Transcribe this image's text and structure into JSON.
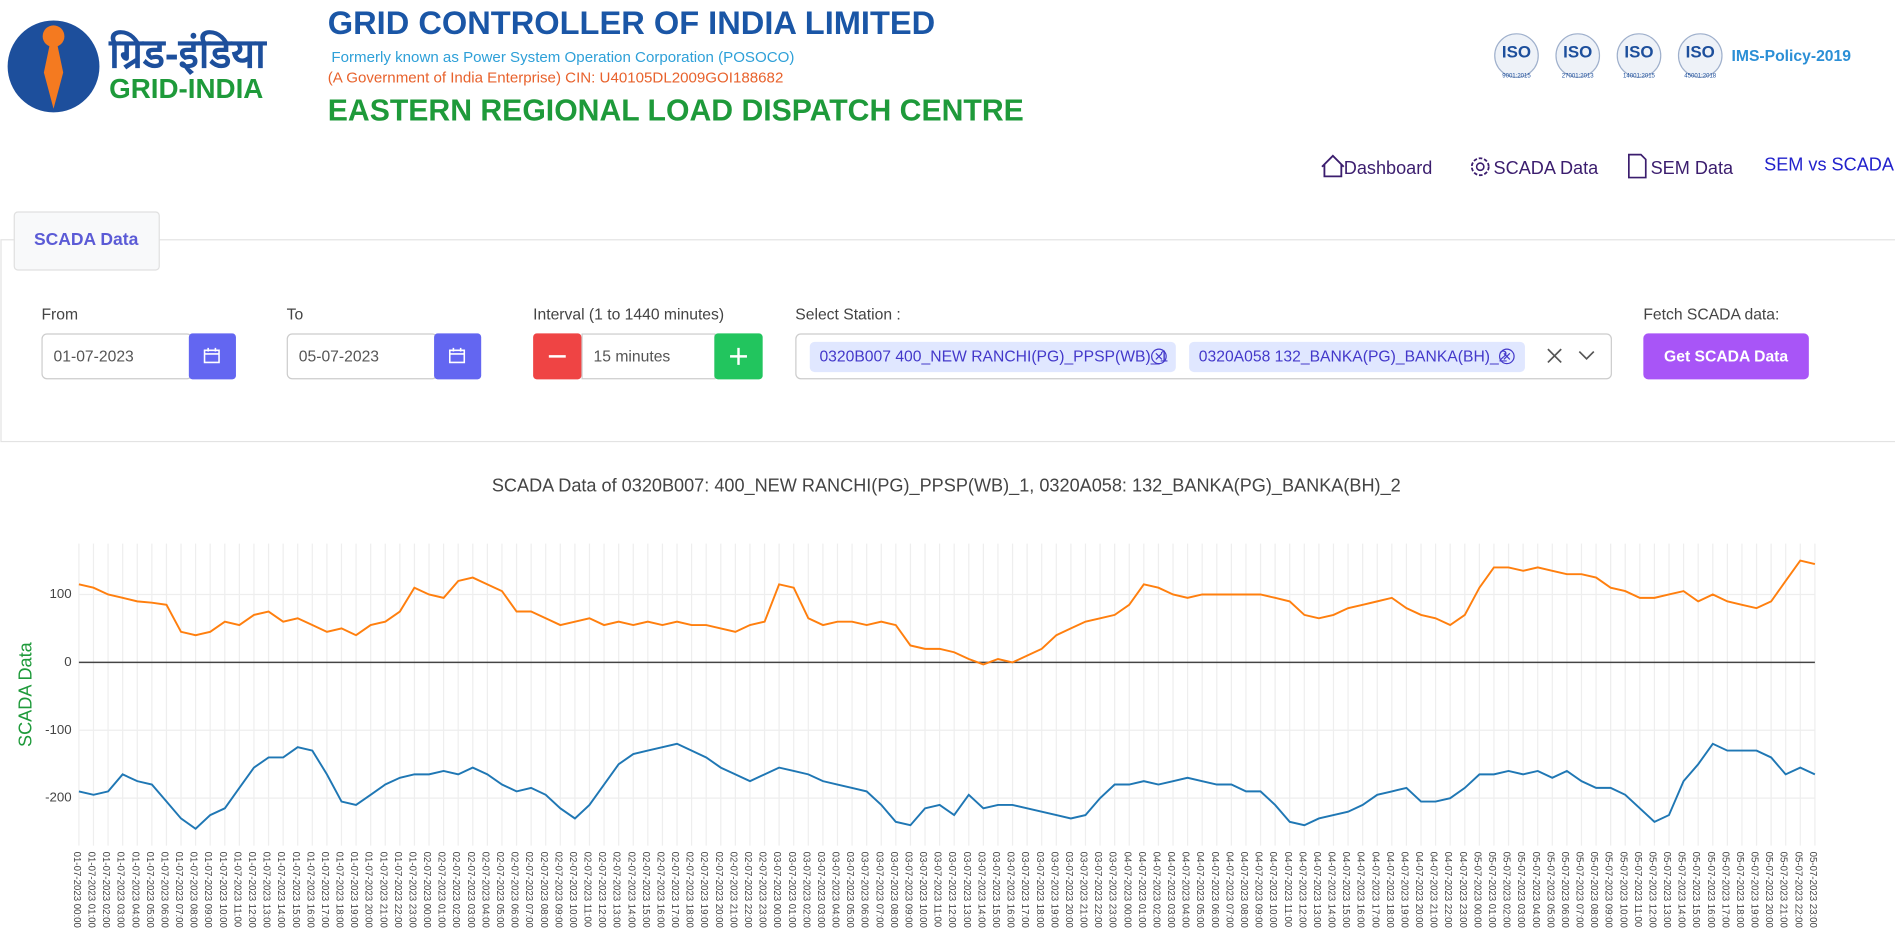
{
  "header": {
    "logo_hindi": "ग्रिड-इंडिया",
    "logo_english": "GRID-INDIA",
    "title": "GRID CONTROLLER OF INDIA LIMITED",
    "subtitle": "Formerly known as Power System Operation Corporation (POSOCO)",
    "cin": "(A Government of India Enterprise) CIN: U40105DL2009GOI188682",
    "centre": "EASTERN REGIONAL LOAD DISPATCH CENTRE",
    "iso": [
      {
        "label": "ISO",
        "std": "9001:2015"
      },
      {
        "label": "ISO",
        "std": "27001:2013"
      },
      {
        "label": "ISO",
        "std": "14001:2015"
      },
      {
        "label": "ISO",
        "std": "45001:2018"
      }
    ],
    "policy": "IMS-Policy-2019"
  },
  "nav": [
    "Dashboard",
    "SCADA Data",
    "SEM Data",
    "SEM vs SCADA"
  ],
  "tab": "SCADA Data",
  "form": {
    "from_label": "From",
    "from_value": "01-07-2023",
    "to_label": "To",
    "to_value": "05-07-2023",
    "interval_label": "Interval (1 to 1440 minutes)",
    "interval_value": "15 minutes",
    "station_label": "Select Station :",
    "stations": [
      "0320B007 400_NEW RANCHI(PG)_PPSP(WB)_1",
      "0320A058 132_BANKA(PG)_BANKA(BH)_2"
    ],
    "fetch_label": "Fetch SCADA data:",
    "fetch_button": "Get SCADA Data"
  },
  "chart_data": {
    "type": "line",
    "title": "SCADA Data of 0320B007: 400_NEW RANCHI(PG)_PPSP(WB)_1, 0320A058: 132_BANKA(PG)_BANKA(BH)_2",
    "y_label": "SCADA Data",
    "categories": [
      "01-07-2023 00:00",
      "01-07-2023 01:00",
      "01-07-2023 02:00",
      "01-07-2023 03:00",
      "01-07-2023 04:00",
      "01-07-2023 05:00",
      "01-07-2023 06:00",
      "01-07-2023 07:00",
      "01-07-2023 08:00",
      "01-07-2023 09:00",
      "01-07-2023 10:00",
      "01-07-2023 11:00",
      "01-07-2023 12:00",
      "01-07-2023 13:00",
      "01-07-2023 14:00",
      "01-07-2023 15:00",
      "01-07-2023 16:00",
      "01-07-2023 17:00",
      "01-07-2023 18:00",
      "01-07-2023 19:00",
      "01-07-2023 20:00",
      "01-07-2023 21:00",
      "01-07-2023 22:00",
      "01-07-2023 23:00",
      "02-07-2023 00:00",
      "02-07-2023 01:00",
      "02-07-2023 02:00",
      "02-07-2023 03:00",
      "02-07-2023 04:00",
      "02-07-2023 05:00",
      "02-07-2023 06:00",
      "02-07-2023 07:00",
      "02-07-2023 08:00",
      "02-07-2023 09:00",
      "02-07-2023 10:00",
      "02-07-2023 11:00",
      "02-07-2023 12:00",
      "02-07-2023 13:00",
      "02-07-2023 14:00",
      "02-07-2023 15:00",
      "02-07-2023 16:00",
      "02-07-2023 17:00",
      "02-07-2023 18:00",
      "02-07-2023 19:00",
      "02-07-2023 20:00",
      "02-07-2023 21:00",
      "02-07-2023 22:00",
      "02-07-2023 23:00",
      "03-07-2023 00:00",
      "03-07-2023 01:00",
      "03-07-2023 02:00",
      "03-07-2023 03:00",
      "03-07-2023 04:00",
      "03-07-2023 05:00",
      "03-07-2023 06:00",
      "03-07-2023 07:00",
      "03-07-2023 08:00",
      "03-07-2023 09:00",
      "03-07-2023 10:00",
      "03-07-2023 11:00",
      "03-07-2023 12:00",
      "03-07-2023 13:00",
      "03-07-2023 14:00",
      "03-07-2023 15:00",
      "03-07-2023 16:00",
      "03-07-2023 17:00",
      "03-07-2023 18:00",
      "03-07-2023 19:00",
      "03-07-2023 20:00",
      "03-07-2023 21:00",
      "03-07-2023 22:00",
      "03-07-2023 23:00",
      "04-07-2023 00:00",
      "04-07-2023 01:00",
      "04-07-2023 02:00",
      "04-07-2023 03:00",
      "04-07-2023 04:00",
      "04-07-2023 05:00",
      "04-07-2023 06:00",
      "04-07-2023 07:00",
      "04-07-2023 08:00",
      "04-07-2023 09:00",
      "04-07-2023 10:00",
      "04-07-2023 11:00",
      "04-07-2023 12:00",
      "04-07-2023 13:00",
      "04-07-2023 14:00",
      "04-07-2023 15:00",
      "04-07-2023 16:00",
      "04-07-2023 17:00",
      "04-07-2023 18:00",
      "04-07-2023 19:00",
      "04-07-2023 20:00",
      "04-07-2023 21:00",
      "04-07-2023 22:00",
      "04-07-2023 23:00",
      "05-07-2023 00:00",
      "05-07-2023 01:00",
      "05-07-2023 02:00",
      "05-07-2023 03:00",
      "05-07-2023 04:00",
      "05-07-2023 05:00",
      "05-07-2023 06:00",
      "05-07-2023 07:00",
      "05-07-2023 08:00",
      "05-07-2023 09:00",
      "05-07-2023 10:00",
      "05-07-2023 11:00",
      "05-07-2023 12:00",
      "05-07-2023 13:00",
      "05-07-2023 14:00",
      "05-07-2023 15:00",
      "05-07-2023 16:00",
      "05-07-2023 17:00",
      "05-07-2023 18:00",
      "05-07-2023 19:00",
      "05-07-2023 20:00",
      "05-07-2023 21:00",
      "05-07-2023 22:00",
      "05-07-2023 23:00"
    ],
    "series": [
      {
        "color": "#ff7f0e",
        "values": [
          115,
          110,
          100,
          95,
          90,
          88,
          85,
          45,
          40,
          45,
          60,
          55,
          70,
          75,
          60,
          65,
          55,
          45,
          50,
          40,
          55,
          60,
          75,
          110,
          100,
          95,
          120,
          125,
          115,
          105,
          75,
          75,
          65,
          55,
          60,
          65,
          55,
          60,
          55,
          60,
          55,
          60,
          55,
          55,
          50,
          45,
          55,
          60,
          115,
          110,
          65,
          55,
          60,
          60,
          55,
          60,
          55,
          25,
          20,
          20,
          15,
          5,
          -3,
          5,
          0,
          10,
          20,
          40,
          50,
          60,
          65,
          70,
          85,
          115,
          110,
          100,
          95,
          100,
          100,
          100,
          100,
          100,
          95,
          90,
          70,
          65,
          70,
          80,
          85,
          90,
          95,
          80,
          70,
          65,
          55,
          70,
          110,
          140,
          140,
          135,
          140,
          135,
          130,
          130,
          125,
          110,
          105,
          95,
          95,
          100,
          105,
          90,
          100,
          90,
          85,
          80,
          90,
          120,
          150,
          145
        ]
      },
      {
        "color": "#1f77b4",
        "values": [
          -190,
          -195,
          -190,
          -165,
          -175,
          -180,
          -205,
          -230,
          -245,
          -225,
          -215,
          -185,
          -155,
          -140,
          -140,
          -125,
          -130,
          -165,
          -205,
          -210,
          -195,
          -180,
          -170,
          -165,
          -165,
          -160,
          -165,
          -155,
          -165,
          -180,
          -190,
          -185,
          -195,
          -215,
          -230,
          -210,
          -180,
          -150,
          -135,
          -130,
          -125,
          -120,
          -130,
          -140,
          -155,
          -165,
          -175,
          -165,
          -155,
          -160,
          -165,
          -175,
          -180,
          -185,
          -190,
          -210,
          -235,
          -240,
          -215,
          -210,
          -225,
          -195,
          -215,
          -210,
          -210,
          -215,
          -220,
          -225,
          -230,
          -225,
          -200,
          -180,
          -180,
          -175,
          -180,
          -175,
          -170,
          -175,
          -180,
          -180,
          -190,
          -190,
          -210,
          -235,
          -240,
          -230,
          -225,
          -220,
          -210,
          -195,
          -190,
          -185,
          -205,
          -205,
          -200,
          -185,
          -165,
          -165,
          -160,
          -165,
          -160,
          -170,
          -160,
          -175,
          -185,
          -185,
          -195,
          -215,
          -235,
          -225,
          -175,
          -150,
          -120,
          -130,
          -130,
          -130,
          -140,
          -165,
          -155,
          -165
        ]
      }
    ],
    "ylim": [
      -270,
      175
    ],
    "yticks": [
      -200,
      -100,
      0,
      100
    ],
    "grid": true
  }
}
